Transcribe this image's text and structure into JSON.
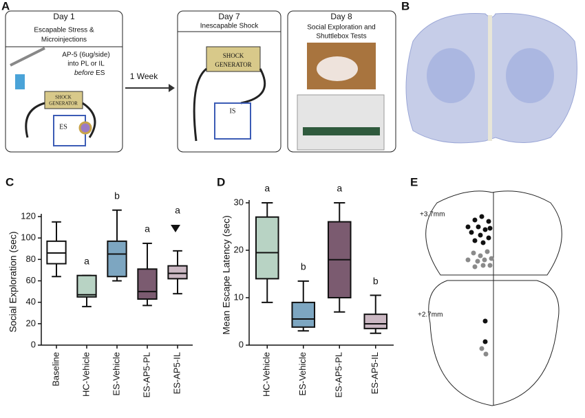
{
  "panels": {
    "A": {
      "label": "A",
      "day1": {
        "title": "Day 1",
        "lines": [
          "Escapable Stress &",
          "Microinjections"
        ],
        "drug": [
          "AP-5 (6ug/side)",
          "into PL or IL"
        ],
        "before": "before",
        "es_after": "ES",
        "generator": [
          "SHOCK",
          "GENERATOR"
        ],
        "box": "ES"
      },
      "arrow": "1 Week",
      "day7": {
        "title": "Day 7",
        "lines": [
          "Inescapable Shock"
        ],
        "generator": [
          "SHOCK",
          "GENERATOR"
        ],
        "box": "IS"
      },
      "day8": {
        "title": "Day 8",
        "lines": [
          "Social Exploration and",
          "Shuttlebox Tests"
        ]
      }
    },
    "B": {
      "label": "B"
    },
    "E": {
      "label": "E",
      "levels": [
        "+3.7mm",
        "+2.7mm"
      ]
    }
  },
  "chart_data": [
    {
      "type": "box",
      "panel": "C",
      "ylabel": "Social Exploration (sec)",
      "categories": [
        "Baseline",
        "HC-Vehicle",
        "ES-Vehicle",
        "ES-AP5-PL",
        "ES-AP5-IL"
      ],
      "min": [
        64,
        36,
        60,
        37,
        48
      ],
      "q1": [
        76,
        45,
        64,
        43,
        62
      ],
      "median": [
        86,
        47,
        85,
        50,
        67
      ],
      "q3": [
        97,
        65,
        97,
        71,
        74
      ],
      "max": [
        115,
        65,
        126,
        95,
        88
      ],
      "colors": [
        "#ffffff",
        "#b8d3c4",
        "#7da6c1",
        "#7b5b70",
        "#cbb8c3"
      ],
      "letters": [
        null,
        "a",
        "b",
        "a",
        "a"
      ],
      "ylim": [
        0,
        120
      ],
      "yticks": [
        0,
        20,
        40,
        60,
        80,
        100,
        120
      ]
    },
    {
      "type": "box",
      "panel": "D",
      "ylabel": "Mean Escape Latency (sec)",
      "categories": [
        "HC-Vehicle",
        "ES-Vehicle",
        "ES-AP5-PL",
        "ES-AP5-IL"
      ],
      "min": [
        9,
        3,
        7,
        2.5
      ],
      "q1": [
        14,
        3.8,
        10,
        3.5
      ],
      "median": [
        19.5,
        5.5,
        18,
        4.5
      ],
      "q3": [
        27,
        9,
        26,
        6.5
      ],
      "max": [
        30,
        13.5,
        30,
        10.5
      ],
      "colors": [
        "#b8d3c4",
        "#7da6c1",
        "#7b5b70",
        "#cbb8c3"
      ],
      "letters": [
        "a",
        "b",
        "a",
        "b"
      ],
      "ylim": [
        0,
        30
      ],
      "yticks": [
        0,
        10,
        20,
        30
      ]
    }
  ]
}
